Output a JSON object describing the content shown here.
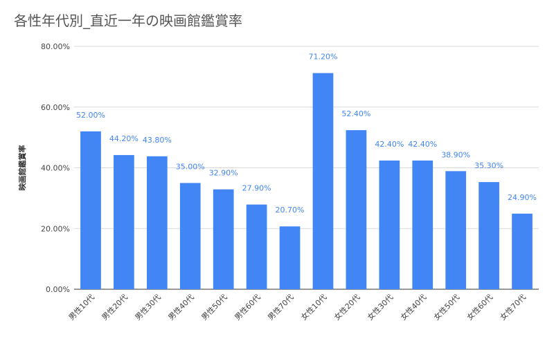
{
  "chart_data": {
    "type": "bar",
    "title": "各性年代別_直近一年の映画館鑑賞率",
    "xlabel": "",
    "ylabel": "映画館鑑賞率",
    "ylim": [
      0,
      80
    ],
    "yticks": [
      "0.00%",
      "20.00%",
      "40.00%",
      "60.00%",
      "80.00%"
    ],
    "grid": true,
    "bar_color": "#4285f4",
    "categories": [
      "男性10代",
      "男性20代",
      "男性30代",
      "男性40代",
      "男性50代",
      "男性60代",
      "男性70代",
      "女性10代",
      "女性20代",
      "女性30代",
      "女性40代",
      "女性50代",
      "女性60代",
      "女性70代"
    ],
    "values": [
      52.0,
      44.2,
      43.8,
      35.0,
      32.9,
      27.9,
      20.7,
      71.2,
      52.4,
      42.4,
      42.4,
      38.9,
      35.3,
      24.9
    ],
    "data_labels": [
      "52.00%",
      "44.20%",
      "43.80%",
      "35.00%",
      "32.90%",
      "27.90%",
      "20.70%",
      "71.20%",
      "52.40%",
      "42.40%",
      "42.40%",
      "38.90%",
      "35.30%",
      "24.90%"
    ]
  }
}
